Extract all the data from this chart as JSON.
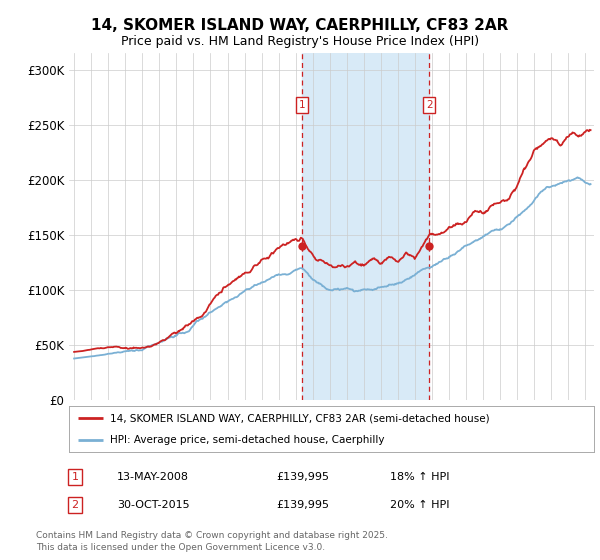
{
  "title": "14, SKOMER ISLAND WAY, CAERPHILLY, CF83 2AR",
  "subtitle": "Price paid vs. HM Land Registry's House Price Index (HPI)",
  "ytick_values": [
    0,
    50000,
    100000,
    150000,
    200000,
    250000,
    300000
  ],
  "ylim": [
    0,
    315000
  ],
  "xlim_start": 1994.7,
  "xlim_end": 2025.5,
  "red_color": "#cc2222",
  "blue_color": "#7ab0d4",
  "marker1_date": 2008.36,
  "marker1_value": 139995,
  "marker1_label": "1",
  "marker2_date": 2015.83,
  "marker2_value": 139995,
  "marker2_label": "2",
  "shade_color": "#d8eaf7",
  "legend_red": "14, SKOMER ISLAND WAY, CAERPHILLY, CF83 2AR (semi-detached house)",
  "legend_blue": "HPI: Average price, semi-detached house, Caerphilly",
  "footer": "Contains HM Land Registry data © Crown copyright and database right 2025.\nThis data is licensed under the Open Government Licence v3.0.",
  "bg_color": "#ffffff",
  "grid_color": "#cccccc"
}
